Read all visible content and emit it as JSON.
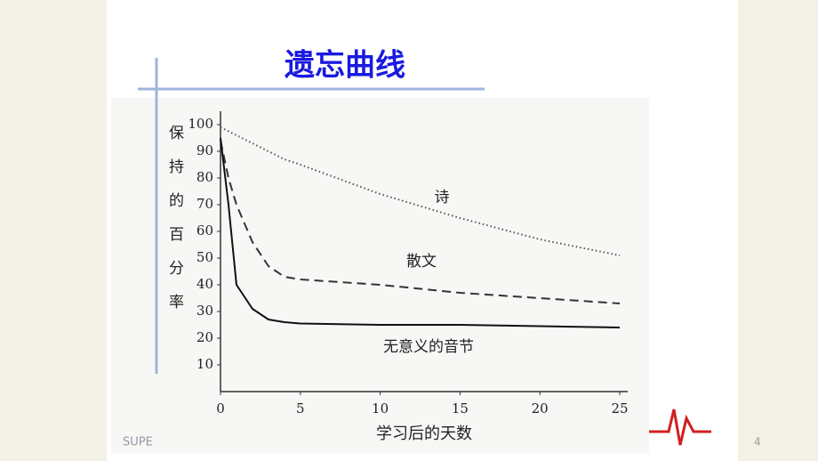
{
  "chart_data": {
    "type": "line",
    "title": "遗忘曲线",
    "y_label": "保持的百分率",
    "x_label": "学习后的天数",
    "x": [
      0,
      0.5,
      1,
      2,
      3,
      4,
      5,
      10,
      15,
      20,
      25
    ],
    "series": [
      {
        "name": "诗",
        "color": "#555555",
        "style": "dotted",
        "values": [
          99,
          97.5,
          96,
          93,
          90,
          87,
          85,
          74,
          65,
          57,
          51
        ]
      },
      {
        "name": "散文",
        "color": "#333333",
        "style": "dashed",
        "values": [
          94,
          80,
          70,
          56,
          47,
          43,
          42,
          40,
          37,
          35,
          33
        ]
      },
      {
        "name": "无意义的音节",
        "color": "#111111",
        "style": "solid",
        "values": [
          95,
          70,
          40,
          31,
          27,
          26,
          25.5,
          25,
          25,
          24.5,
          24
        ]
      }
    ],
    "xlim": [
      0,
      25.5
    ],
    "ylim": [
      0,
      105
    ],
    "xticks": [
      0,
      5,
      10,
      15,
      20,
      25
    ],
    "yticks": [
      10,
      20,
      30,
      40,
      50,
      60,
      70,
      80,
      90,
      100
    ],
    "footer": "SUPE",
    "page_number": "4"
  }
}
